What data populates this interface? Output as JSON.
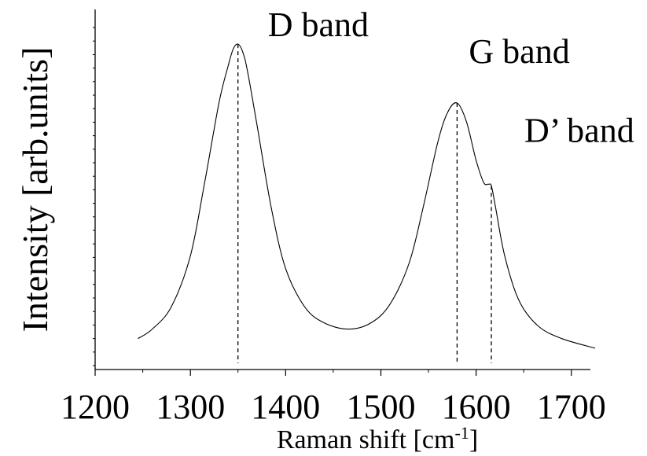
{
  "chart_data": {
    "type": "line",
    "title": "",
    "xlabel": "Raman shift [cm",
    "xlabel_superscript": "-1",
    "xlabel_suffix": "]",
    "ylabel": "Intensity [arb.units]",
    "xlim": [
      1200,
      1720
    ],
    "ylim": [
      0,
      1.0
    ],
    "x_ticks": [
      "1200",
      "1300",
      "1400",
      "1500",
      "1600",
      "1700"
    ],
    "y_ticks": [],
    "grid": false,
    "legend": "none",
    "series": [
      {
        "color": "#000000",
        "x": [
          1245,
          1260,
          1280,
          1300,
          1315,
          1330,
          1340,
          1345,
          1350,
          1355,
          1360,
          1370,
          1385,
          1400,
          1420,
          1440,
          1466,
          1490,
          1510,
          1530,
          1545,
          1560,
          1570,
          1580,
          1590,
          1600,
          1608,
          1613,
          1616,
          1620,
          1630,
          1645,
          1665,
          1690,
          1725
        ],
        "values": [
          0.06,
          0.09,
          0.16,
          0.32,
          0.55,
          0.8,
          0.92,
          0.97,
          0.985,
          0.96,
          0.9,
          0.73,
          0.47,
          0.28,
          0.16,
          0.11,
          0.09,
          0.11,
          0.17,
          0.3,
          0.48,
          0.68,
          0.77,
          0.8,
          0.74,
          0.62,
          0.55,
          0.545,
          0.54,
          0.48,
          0.32,
          0.18,
          0.1,
          0.06,
          0.03
        ]
      }
    ],
    "peaks": [
      {
        "x": 1350,
        "y": 0.985,
        "label": "D band"
      },
      {
        "x": 1580,
        "y": 0.8,
        "label": "G band"
      },
      {
        "x": 1616,
        "y": 0.54,
        "label": "D’ band"
      }
    ]
  }
}
